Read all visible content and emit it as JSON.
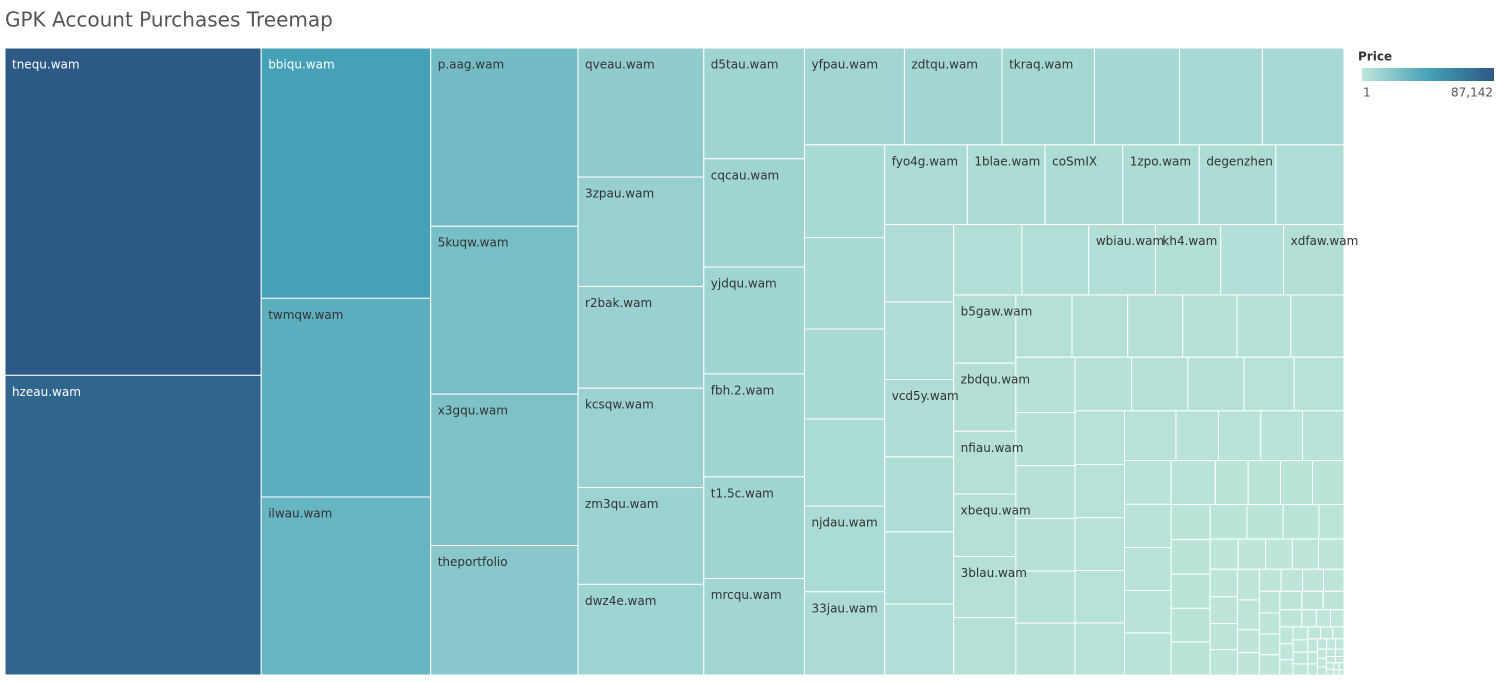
{
  "chart_data": {
    "type": "treemap",
    "title": "GPK Account Purchases Treemap",
    "categories": [
      "tnequ.wam",
      "hzeau.wam",
      "bbiqu.wam",
      "twmqw.wam",
      "ilwau.wam",
      "p.aag.wam",
      "5kuqw.wam",
      "x3gqu.wam",
      "theportfolio",
      "qveau.wam",
      "3zpau.wam",
      "r2bak.wam",
      "kcsqw.wam",
      "zm3qu.wam",
      "dwz4e.wam",
      "d5tau.wam",
      "cqcau.wam",
      "yjdqu.wam",
      "fbh.2.wam",
      "t1.5c.wam",
      "mrcqu.wam",
      "yfpau.wam",
      "zdtqu.wam",
      "tkraq.wam",
      null,
      null,
      null,
      null,
      null,
      null,
      null,
      "njdau.wam",
      "33jau.wam",
      "fyo4g.wam",
      "1blae.wam",
      "coSmIX",
      "1zpo.wam",
      "degenzhen",
      null,
      null,
      null,
      "vcd5y.wam",
      null,
      null,
      null,
      null,
      null,
      "wbiau.wam",
      "kh4.wam",
      null,
      "xdfaw.wam",
      "b5gaw.wam",
      "zbdqu.wam",
      "nfiau.wam",
      "xbequ.wam",
      "3blau.wam",
      null,
      null,
      null,
      null,
      null,
      null,
      null,
      null,
      null,
      null,
      null,
      null,
      null,
      null,
      null,
      null,
      null,
      null,
      null,
      null,
      null,
      null,
      null,
      null,
      null,
      null,
      null,
      null,
      null,
      null,
      null,
      null,
      null,
      null,
      null,
      null,
      null,
      null,
      null,
      null,
      null,
      null,
      null,
      null,
      null,
      null,
      null,
      null,
      null,
      null,
      null,
      null,
      null,
      null,
      null,
      null,
      null,
      null,
      null,
      null,
      null,
      null,
      null,
      null,
      null,
      null,
      null,
      null,
      null,
      null,
      null,
      null,
      null,
      null,
      null,
      null,
      null,
      null,
      null,
      null,
      null,
      null,
      null,
      null,
      null,
      null,
      null,
      null,
      null,
      null,
      null,
      null,
      null,
      null,
      null,
      null,
      null,
      null,
      null,
      null,
      null,
      null,
      null,
      null
    ],
    "values": [
      87142,
      79770,
      44090,
      35000,
      31360,
      27270,
      25680,
      23180,
      19800,
      16880,
      14290,
      13310,
      12990,
      12660,
      11850,
      11590,
      11320,
      11180,
      10770,
      10640,
      10090,
      10060,
      9820,
      9290,
      8570,
      8330,
      8210,
      7740,
      7620,
      7500,
      7260,
      7150,
      6940,
      6840,
      6440,
      6430,
      6340,
      6330,
      5650,
      5555,
      5550,
      5540,
      5370,
      5180,
      5080,
      4990,
      4900,
      4875,
      4780,
      4600,
      4420,
      4410,
      4400,
      4050,
      4040,
      3950,
      3710,
      3630,
      3600,
      3560,
      3520,
      3480,
      3440,
      3400,
      3260,
      3240,
      3220,
      3200,
      3180,
      3160,
      3140,
      3120,
      2800,
      2780,
      2760,
      2740,
      2720,
      2700,
      2680,
      2660,
      2200,
      2180,
      2160,
      2140,
      2120,
      2100,
      2080,
      2060,
      2040,
      2020,
      1500,
      1480,
      1460,
      1440,
      1420,
      1400,
      1380,
      1360,
      1340,
      1320,
      1300,
      1280,
      900,
      880,
      860,
      840,
      820,
      800,
      780,
      760,
      740,
      720,
      700,
      680,
      520,
      510,
      500,
      490,
      480,
      470,
      460,
      450,
      440,
      430,
      420,
      410,
      400,
      390,
      260,
      250,
      240,
      230,
      220,
      210,
      200,
      190,
      180,
      170,
      160,
      150,
      140,
      130,
      120,
      110,
      100,
      95,
      90,
      85,
      80,
      75,
      70,
      65,
      60,
      55,
      50,
      45,
      40,
      35,
      30,
      25
    ],
    "color_legend": {
      "title": "Price",
      "ticks": [
        1,
        {
          "value": 87142,
          "label": "87,142"
        }
      ]
    },
    "colors": [
      "#bfe6da",
      "#45a2b9",
      "#2c5985"
    ]
  }
}
